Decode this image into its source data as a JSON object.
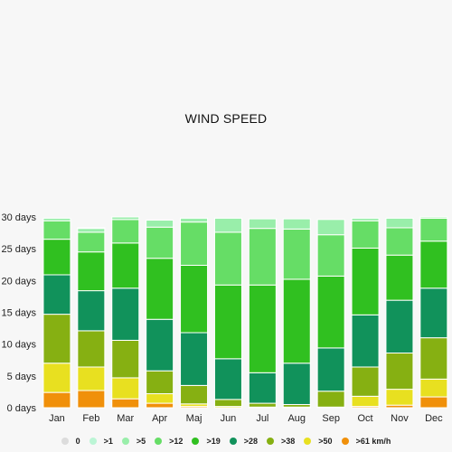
{
  "chart_data": {
    "type": "bar",
    "stacked": true,
    "title": "WIND SPEED",
    "categories": [
      "Jan",
      "Feb",
      "Mar",
      "Apr",
      "Maj",
      "Jun",
      "Jul",
      "Aug",
      "Sep",
      "Oct",
      "Nov",
      "Dec"
    ],
    "ylim": [
      0,
      30
    ],
    "y_ticks": [
      "0 days",
      "5 days",
      "10 days",
      "15 days",
      "20 days",
      "25 days",
      "30 days"
    ],
    "grid": false,
    "legend_position": "bottom",
    "series": [
      {
        "name": "0",
        "color": "#dcdcdc",
        "values": [
          0,
          0,
          0,
          0,
          0,
          0,
          0,
          0,
          0,
          0,
          0,
          0
        ]
      },
      {
        "name": ">61 km/h",
        "color": "#f0900a",
        "values": [
          2.4,
          2.7,
          1.4,
          0.7,
          0.2,
          0,
          0,
          0,
          0,
          0.2,
          0.4,
          1.7
        ]
      },
      {
        "name": ">50",
        "color": "#e8e020",
        "values": [
          4.6,
          3.7,
          3.3,
          1.5,
          0.4,
          0.2,
          0.1,
          0.1,
          0.1,
          1.6,
          2.5,
          2.8
        ]
      },
      {
        "name": ">38",
        "color": "#86b012",
        "values": [
          7.7,
          5.7,
          5.9,
          3.6,
          2.9,
          1.1,
          0.6,
          0.4,
          2.5,
          4.6,
          5.7,
          6.5
        ]
      },
      {
        "name": ">28",
        "color": "#11925b",
        "values": [
          6.2,
          6.3,
          8.2,
          8.1,
          8.3,
          6.4,
          4.8,
          6.5,
          6.8,
          8.2,
          8.3,
          7.8
        ]
      },
      {
        "name": ">19",
        "color": "#30c020",
        "values": [
          5.6,
          6.1,
          7.1,
          9.6,
          10.6,
          11.6,
          13.8,
          13.2,
          11.3,
          10.5,
          7.1,
          7.4
        ]
      },
      {
        "name": ">12",
        "color": "#66dd66",
        "values": [
          2.9,
          3.1,
          3.7,
          4.9,
          6.8,
          8.3,
          8.9,
          7.9,
          6.5,
          4.3,
          4.3,
          3.6
        ]
      },
      {
        "name": ">5",
        "color": "#99eeaa",
        "values": [
          0.4,
          0.6,
          0.4,
          1.1,
          0.6,
          2.2,
          1.5,
          1.6,
          2.4,
          0.4,
          1.5,
          0.2
        ]
      },
      {
        "name": ">1",
        "color": "#bbf5d5",
        "values": [
          0,
          0.1,
          0,
          0,
          0,
          0,
          0,
          0,
          0,
          0,
          0,
          0
        ]
      }
    ]
  }
}
